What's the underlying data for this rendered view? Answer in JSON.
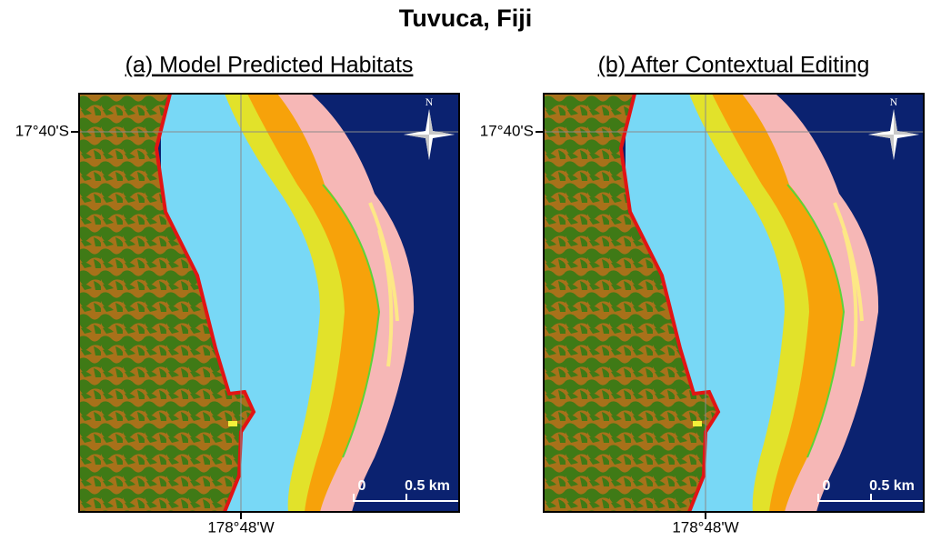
{
  "title": "Tuvuca, Fiji",
  "panels": [
    {
      "title": "(a) Model Predicted Habitats",
      "latitude_label": "17°40'S",
      "longitude_label": "178°48'W",
      "north": "N",
      "scale_start": "0",
      "scale_end": "0.5 km"
    },
    {
      "title": "(b) After Contextual Editing",
      "latitude_label": "17°40'S",
      "longitude_label": "178°48'W",
      "north": "N",
      "scale_start": "0",
      "scale_end": "0.5 km"
    }
  ]
}
